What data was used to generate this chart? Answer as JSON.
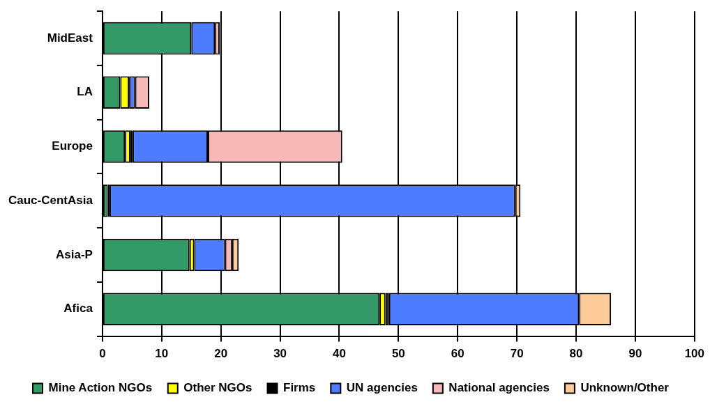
{
  "chart_data": {
    "type": "bar",
    "orientation": "horizontal",
    "stacked": true,
    "categories": [
      "MidEast",
      "LA",
      "Europe",
      "Cauc-CentAsia",
      "Asia-P",
      "Afica"
    ],
    "series": [
      {
        "name": "Mine Action NGOs",
        "color": "#339966",
        "values": [
          15,
          3,
          3.8,
          0.9,
          14.7,
          46.8
        ]
      },
      {
        "name": "Other NGOs",
        "color": "#ffff00",
        "values": [
          0,
          1.5,
          0.9,
          0,
          0.8,
          1.0
        ]
      },
      {
        "name": "Firms",
        "color": "#000000",
        "values": [
          0,
          0,
          0.4,
          0.3,
          0,
          0.6
        ]
      },
      {
        "name": "UN agencies",
        "color": "#4d7cff",
        "values": [
          4,
          1,
          12.7,
          68.5,
          5.2,
          32.1
        ]
      },
      {
        "name": "National agencies",
        "color": "#f7b8b8",
        "values": [
          0.8,
          2.4,
          22.7,
          0,
          1.2,
          0
        ]
      },
      {
        "name": "Unknown/Other",
        "color": "#ffcc99",
        "values": [
          0,
          0,
          0,
          0.9,
          1.1,
          5.4
        ]
      }
    ],
    "xlim": [
      0,
      100
    ],
    "xticks": [
      0,
      10,
      20,
      30,
      40,
      50,
      60,
      70,
      80,
      90,
      100
    ],
    "grid": "x",
    "legend": "bottom"
  }
}
